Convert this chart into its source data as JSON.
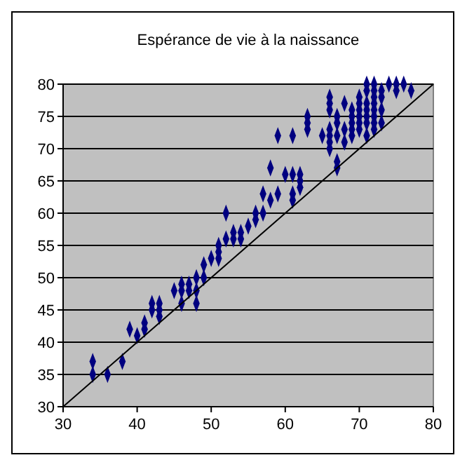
{
  "chart_data": {
    "type": "scatter",
    "title": "Espérance de vie à la naissance",
    "xlim": [
      30,
      80
    ],
    "ylim": [
      30,
      80
    ],
    "xticks": [
      30,
      40,
      50,
      60,
      70,
      80
    ],
    "yticks": [
      30,
      35,
      40,
      45,
      50,
      55,
      60,
      65,
      70,
      75,
      80
    ],
    "grid": "y",
    "marker": "diamond",
    "series": [
      {
        "color": "#000080",
        "x": [
          34,
          34,
          36,
          38,
          39,
          40,
          41,
          41,
          42,
          42,
          43,
          43,
          43,
          45,
          46,
          46,
          46,
          47,
          47,
          48,
          48,
          48,
          49,
          49,
          50,
          51,
          51,
          51,
          52,
          52,
          53,
          53,
          54,
          54,
          55,
          56,
          56,
          57,
          57,
          58,
          58,
          59,
          59,
          60,
          61,
          61,
          61,
          62,
          62,
          62,
          61,
          63,
          63,
          63,
          65,
          66,
          66,
          66,
          66,
          66,
          66,
          66,
          67,
          67,
          67,
          67,
          67,
          68,
          68,
          68,
          69,
          69,
          69,
          69,
          70,
          70,
          70,
          70,
          70,
          70,
          71,
          71,
          71,
          71,
          71,
          71,
          71,
          72,
          72,
          72,
          72,
          72,
          72,
          72,
          73,
          73,
          73,
          74,
          75,
          75,
          76,
          77,
          72,
          73,
          69
        ],
        "values": [
          37,
          35,
          35,
          37,
          42,
          41,
          42,
          43,
          45,
          46,
          45,
          46,
          44,
          48,
          48,
          49,
          46,
          48,
          49,
          48,
          50,
          46,
          50,
          52,
          53,
          53,
          54,
          55,
          56,
          60,
          56,
          57,
          57,
          56,
          58,
          59,
          60,
          60,
          63,
          62,
          67,
          72,
          63,
          66,
          66,
          62,
          63,
          64,
          65,
          66,
          72,
          73,
          75,
          74,
          72,
          72,
          71,
          70,
          73,
          76,
          77,
          78,
          67,
          68,
          72,
          74,
          75,
          77,
          73,
          71,
          72,
          74,
          75,
          76,
          73,
          74,
          75,
          76,
          77,
          78,
          72,
          74,
          75,
          76,
          77,
          79,
          80,
          73,
          74,
          75,
          76,
          77,
          78,
          79,
          74,
          78,
          79,
          80,
          79,
          80,
          80,
          79,
          80,
          76,
          73
        ]
      },
      {
        "type": "line",
        "color": "#000000",
        "marker": "none",
        "x": [
          30,
          80
        ],
        "values": [
          30,
          80
        ]
      }
    ]
  }
}
